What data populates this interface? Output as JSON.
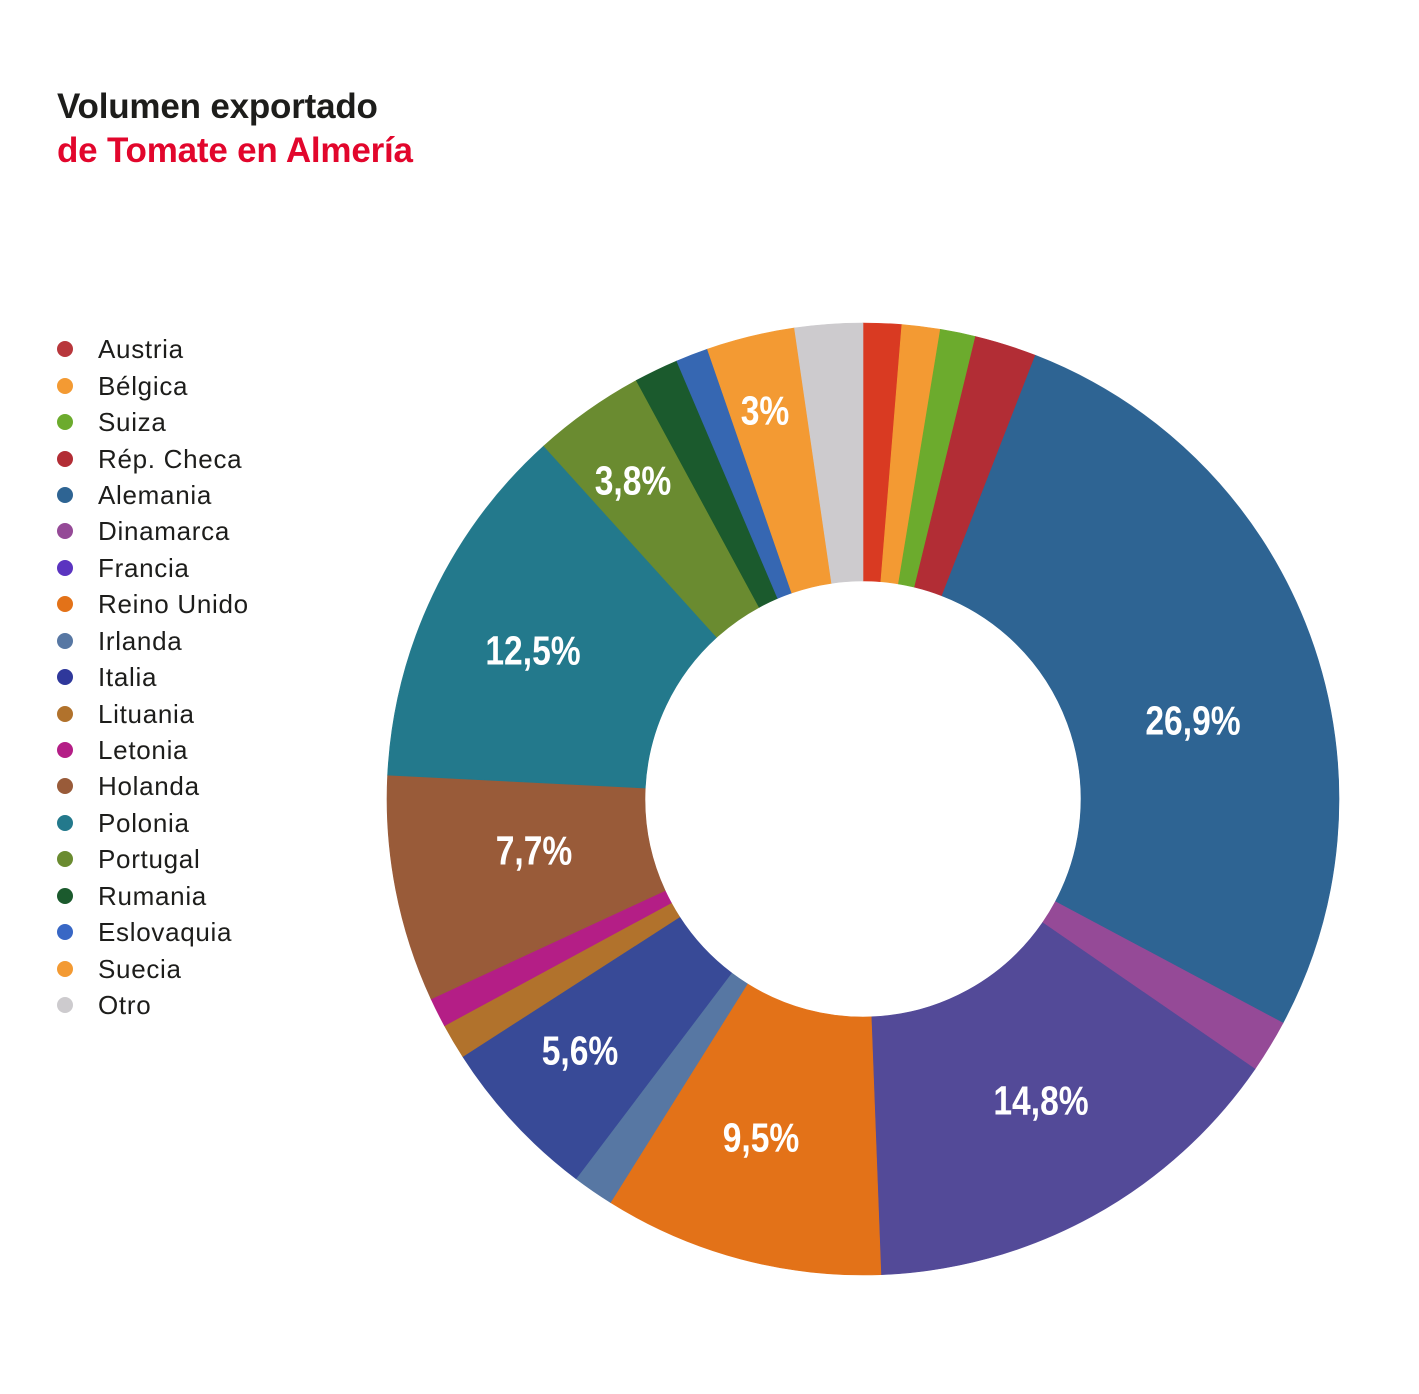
{
  "chart_data": {
    "type": "pie",
    "donut": true,
    "title": "Volumen exportado",
    "subtitle": "de Tomate en Almería",
    "unit": "%",
    "legend_position": "left",
    "slices": [
      {
        "name": "Austria",
        "value": 1.3,
        "color": "#d93a22",
        "legend_color": "#b8373c"
      },
      {
        "name": "Bélgica",
        "value": 1.3,
        "color": "#f39a33"
      },
      {
        "name": "Suiza",
        "value": 1.2,
        "color": "#6cab2d"
      },
      {
        "name": "Rép. Checa",
        "value": 2.1,
        "color": "#b22d35"
      },
      {
        "name": "Alemania",
        "value": 26.9,
        "label": "26,9%",
        "color": "#2e6493"
      },
      {
        "name": "Dinamarca",
        "value": 1.8,
        "color": "#954a97"
      },
      {
        "name": "Francia",
        "value": 14.8,
        "label": "14,8%",
        "color": "#534a98",
        "legend_color": "#5b34c0"
      },
      {
        "name": "Reino Unido",
        "value": 9.5,
        "label": "9,5%",
        "color": "#e37218"
      },
      {
        "name": "Irlanda",
        "value": 1.4,
        "color": "#5777a3"
      },
      {
        "name": "Italia",
        "value": 5.6,
        "label": "5,6%",
        "color": "#384a97",
        "legend_color": "#2f389b"
      },
      {
        "name": "Lituania",
        "value": 1.2,
        "color": "#b1722c"
      },
      {
        "name": "Letonia",
        "value": 1.0,
        "color": "#b41e86"
      },
      {
        "name": "Holanda",
        "value": 7.7,
        "label": "7,7%",
        "color": "#995b39"
      },
      {
        "name": "Polonia",
        "value": 12.5,
        "label": "12,5%",
        "color": "#23798c"
      },
      {
        "name": "Portugal",
        "value": 3.8,
        "label": "3,8%",
        "color": "#6a8b30"
      },
      {
        "name": "Rumania",
        "value": 1.5,
        "color": "#1b5a2d"
      },
      {
        "name": "Eslovaquia",
        "value": 1.1,
        "color": "#3667b2",
        "legend_color": "#3867c5"
      },
      {
        "name": "Suecia",
        "value": 3.0,
        "label": "3%",
        "color": "#f39a33"
      },
      {
        "name": "Otro",
        "value": 2.3,
        "color": "#cdcbce"
      }
    ]
  },
  "colors": {
    "title": "#1d1d1b",
    "subtitle": "#e2062c",
    "legend_text": "#1d1d1b",
    "data_label": "#ffffff",
    "background": "#ffffff"
  }
}
